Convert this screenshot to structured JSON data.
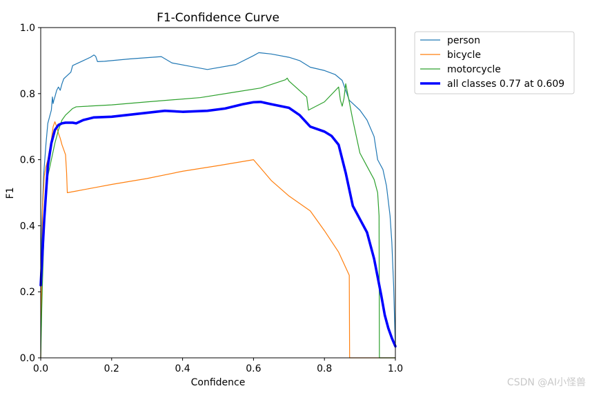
{
  "chart_data": {
    "type": "line",
    "title": "F1-Confidence Curve",
    "xlabel": "Confidence",
    "ylabel": "F1",
    "xlim": [
      0,
      1
    ],
    "ylim": [
      0,
      1
    ],
    "xticks": [
      "0.0",
      "0.2",
      "0.4",
      "0.6",
      "0.8",
      "1.0"
    ],
    "yticks": [
      "0.0",
      "0.2",
      "0.4",
      "0.6",
      "0.8",
      "1.0"
    ],
    "grid": false,
    "legend_position": "outside-top-right",
    "series": [
      {
        "name": "person",
        "color": "#1f77b4",
        "width": "thin",
        "x": [
          0,
          0.003,
          0.008,
          0.015,
          0.02,
          0.025,
          0.03,
          0.033,
          0.035,
          0.037,
          0.04,
          0.045,
          0.05,
          0.055,
          0.06,
          0.065,
          0.07,
          0.075,
          0.08,
          0.085,
          0.09,
          0.1,
          0.12,
          0.14,
          0.15,
          0.155,
          0.16,
          0.18,
          0.25,
          0.34,
          0.37,
          0.42,
          0.47,
          0.55,
          0.6,
          0.615,
          0.65,
          0.7,
          0.73,
          0.76,
          0.8,
          0.83,
          0.85,
          0.87,
          0.9,
          0.92,
          0.94,
          0.95,
          0.965,
          0.975,
          0.985,
          0.99,
          0.995,
          1.0
        ],
        "y": [
          0.25,
          0.4,
          0.55,
          0.65,
          0.71,
          0.73,
          0.75,
          0.79,
          0.77,
          0.78,
          0.79,
          0.81,
          0.82,
          0.81,
          0.83,
          0.845,
          0.85,
          0.855,
          0.86,
          0.865,
          0.885,
          0.89,
          0.9,
          0.91,
          0.917,
          0.913,
          0.897,
          0.898,
          0.905,
          0.912,
          0.893,
          0.883,
          0.873,
          0.888,
          0.915,
          0.924,
          0.92,
          0.91,
          0.9,
          0.88,
          0.87,
          0.858,
          0.84,
          0.78,
          0.75,
          0.72,
          0.67,
          0.6,
          0.57,
          0.52,
          0.43,
          0.35,
          0.22,
          0.03
        ]
      },
      {
        "name": "bicycle",
        "color": "#ff7f0e",
        "width": "thin",
        "x": [
          0,
          0.005,
          0.01,
          0.015,
          0.02,
          0.025,
          0.03,
          0.035,
          0.04,
          0.045,
          0.05,
          0.055,
          0.06,
          0.065,
          0.07,
          0.073,
          0.075,
          0.1,
          0.15,
          0.2,
          0.3,
          0.4,
          0.5,
          0.6,
          0.62,
          0.65,
          0.7,
          0.76,
          0.8,
          0.84,
          0.87,
          0.871,
          0.9,
          1.0
        ],
        "y": [
          0.0,
          0.45,
          0.55,
          0.58,
          0.6,
          0.63,
          0.66,
          0.7,
          0.715,
          0.7,
          0.68,
          0.665,
          0.645,
          0.63,
          0.615,
          0.56,
          0.5,
          0.505,
          0.515,
          0.525,
          0.543,
          0.565,
          0.582,
          0.6,
          0.575,
          0.537,
          0.49,
          0.445,
          0.385,
          0.32,
          0.25,
          0.0,
          0.0,
          0.0
        ]
      },
      {
        "name": "motorcycle",
        "color": "#2ca02c",
        "width": "thin",
        "x": [
          0,
          0.003,
          0.005,
          0.01,
          0.02,
          0.03,
          0.04,
          0.05,
          0.06,
          0.07,
          0.08,
          0.09,
          0.1,
          0.2,
          0.3,
          0.45,
          0.55,
          0.62,
          0.69,
          0.695,
          0.7,
          0.75,
          0.755,
          0.8,
          0.84,
          0.845,
          0.85,
          0.855,
          0.86,
          0.88,
          0.9,
          0.92,
          0.94,
          0.95,
          0.954,
          0.955,
          1.0
        ],
        "y": [
          0.0,
          0.15,
          0.23,
          0.4,
          0.55,
          0.6,
          0.65,
          0.69,
          0.72,
          0.735,
          0.745,
          0.755,
          0.76,
          0.766,
          0.775,
          0.788,
          0.805,
          0.817,
          0.842,
          0.847,
          0.838,
          0.79,
          0.75,
          0.775,
          0.82,
          0.78,
          0.762,
          0.785,
          0.83,
          0.72,
          0.62,
          0.58,
          0.54,
          0.5,
          0.43,
          0.0,
          0.0
        ]
      },
      {
        "name": "all classes 0.77 at 0.609",
        "color": "#0000ff",
        "width": "thick",
        "x": [
          0,
          0.005,
          0.01,
          0.015,
          0.02,
          0.03,
          0.04,
          0.05,
          0.06,
          0.07,
          0.09,
          0.1,
          0.12,
          0.15,
          0.2,
          0.3,
          0.35,
          0.4,
          0.47,
          0.52,
          0.57,
          0.6,
          0.62,
          0.65,
          0.7,
          0.73,
          0.76,
          0.8,
          0.82,
          0.84,
          0.86,
          0.88,
          0.9,
          0.92,
          0.94,
          0.96,
          0.97,
          0.98,
          0.99,
          1.0
        ],
        "y": [
          0.22,
          0.32,
          0.42,
          0.5,
          0.58,
          0.65,
          0.69,
          0.705,
          0.71,
          0.712,
          0.712,
          0.71,
          0.72,
          0.728,
          0.73,
          0.742,
          0.748,
          0.745,
          0.748,
          0.755,
          0.768,
          0.774,
          0.775,
          0.768,
          0.757,
          0.735,
          0.7,
          0.685,
          0.672,
          0.645,
          0.56,
          0.46,
          0.42,
          0.38,
          0.3,
          0.19,
          0.13,
          0.09,
          0.06,
          0.035
        ]
      }
    ]
  },
  "watermark": "CSDN @AI小怪兽"
}
